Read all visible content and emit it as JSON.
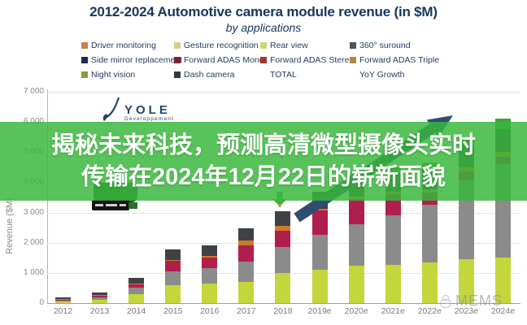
{
  "header": {
    "title": "2012-2024 Automotive camera module revenue (in $M)",
    "subtitle": "by applications"
  },
  "legend": [
    {
      "label": "Driver monitoring",
      "color": "#c87e4f"
    },
    {
      "label": "Gesture recognition",
      "color": "#d9cc8f"
    },
    {
      "label": "Rear view",
      "color": "#ccd57b"
    },
    {
      "label": "360° suround",
      "color": "#44546a"
    },
    {
      "label": "Side mirror replacement",
      "color": "#1c2b49"
    },
    {
      "label": "Forward ADAS Mono",
      "color": "#7e2030"
    },
    {
      "label": "Forward ADAS Stereo",
      "color": "#a03a2d"
    },
    {
      "label": "Forward ADAS Triple",
      "color": "#a98b3c"
    },
    {
      "label": "Night vision",
      "color": "#8a9a46"
    },
    {
      "label": "Dash camera",
      "color": "#2f3a45"
    },
    {
      "label": "TOTAL",
      "color": null
    },
    {
      "label": "YoY Growth",
      "color": null
    }
  ],
  "chart_data": {
    "type": "bar",
    "stacked": true,
    "title": "2012-2024 Automotive camera module revenue (in $M)",
    "subtitle": "by applications",
    "xlabel": "",
    "ylabel": "Revenue ($M)",
    "ylim": [
      0,
      7000
    ],
    "grid": true,
    "legend_position": "top",
    "categories": [
      "2012",
      "2013",
      "2014",
      "2015",
      "2016",
      "2017",
      "2018",
      "2019e",
      "2020e",
      "2021e",
      "2022e",
      "2023e",
      "2024e"
    ],
    "yticks": [
      "0",
      "1 000",
      "2 000",
      "3 000",
      "4 000",
      "5 000",
      "6 000",
      "7 000"
    ],
    "series": [
      {
        "name": "Rear view",
        "color": "#c3d63b",
        "values": [
          60,
          120,
          300,
          580,
          650,
          700,
          985,
          1095,
          1230,
          1275,
          1340,
          1460,
          1505
        ]
      },
      {
        "name": "360° suround",
        "color": "#8b8b8b",
        "values": [
          30,
          80,
          200,
          460,
          500,
          670,
          865,
          1165,
          1395,
          1625,
          1910,
          2600,
          3100
        ]
      },
      {
        "name": "Forward ADAS Mono",
        "color": "#b01e4e",
        "values": [
          40,
          60,
          120,
          350,
          350,
          550,
          550,
          810,
          810,
          700,
          400,
          300,
          250
        ]
      },
      {
        "name": "Driver monitoring",
        "color": "#d07a28",
        "values": [
          10,
          15,
          25,
          45,
          70,
          140,
          145,
          65,
          80,
          100,
          120,
          140,
          160
        ]
      },
      {
        "name": "Dash camera",
        "color": "#3c4246",
        "values": [
          60,
          75,
          185,
          345,
          350,
          420,
          495,
          545,
          580,
          620,
          660,
          700,
          740
        ]
      },
      {
        "name": "Night vision",
        "color": "#3fa33f",
        "values": [
          0,
          0,
          0,
          0,
          0,
          0,
          0,
          0,
          150,
          180,
          220,
          280,
          350
        ]
      }
    ],
    "totals_estimated": [
      200,
      350,
      830,
      1780,
      1920,
      2480,
      3040,
      3680,
      4245,
      4500,
      4650,
      5480,
      6105
    ],
    "annotations": [
      "navy TOTAL trend arrow rising to upper right",
      "green dip arrow above 2018 bar"
    ],
    "note": "Upper portions of 2019e-2024e bars are hidden behind the green overlay banner; values estimated from gridlines."
  },
  "overlay_banner": {
    "line1": "揭秘未来科技，预测高清微型摄像头实时",
    "line2": "传输在2024年12月22日的崭新面貌",
    "background": "#38b83c"
  },
  "logo": {
    "name": "YOLE",
    "sub": "Développement"
  },
  "watermark": {
    "text": "MEMS"
  },
  "colors": {
    "title_navy": "#17365d",
    "axis_gray": "#8a8a8a",
    "arrow_navy": "#2e4d71",
    "banner_green": "#38b83c"
  }
}
